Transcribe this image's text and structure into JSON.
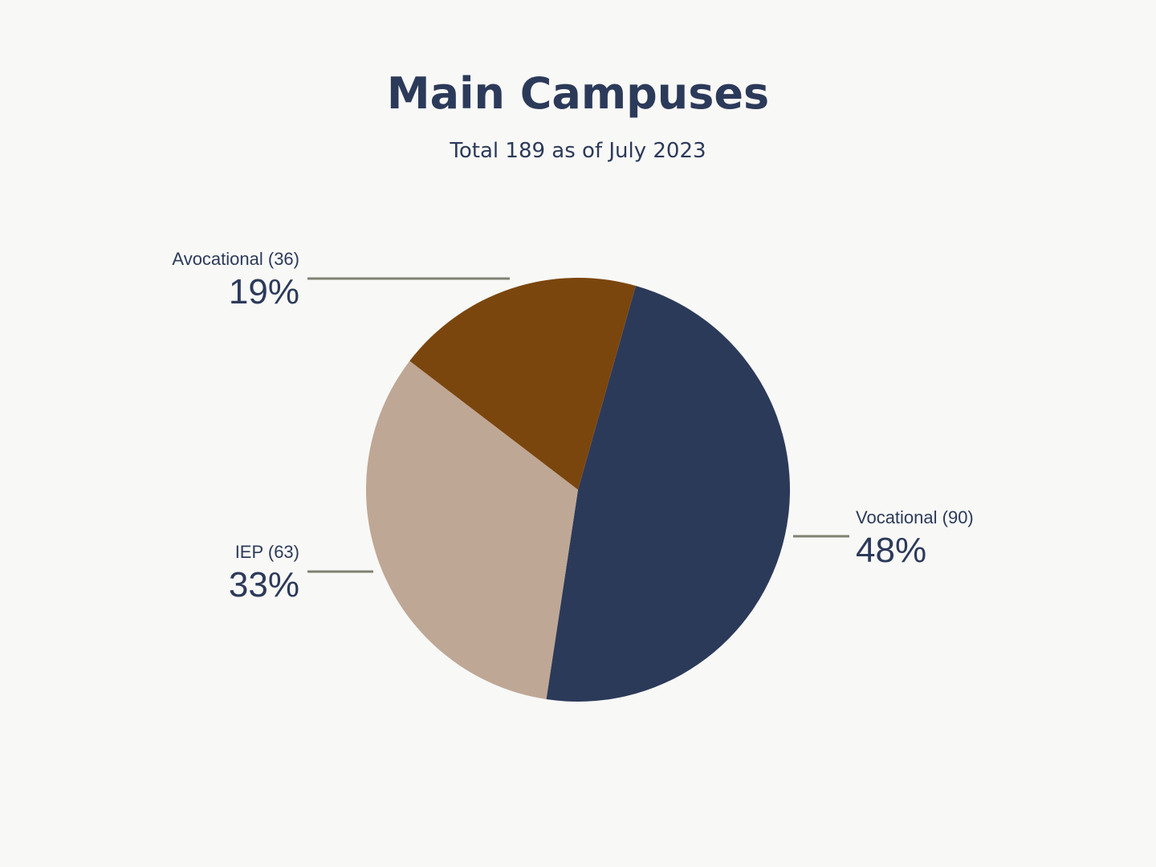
{
  "chart_data": {
    "type": "pie",
    "title": "Main Campuses",
    "subtitle": "Total 189 as of July 2023",
    "categories": [
      "Vocational (90)",
      "IEP (63)",
      "Avocational (36)"
    ],
    "values": [
      48,
      33,
      19
    ],
    "value_labels": [
      "48%",
      "33%",
      "19%"
    ],
    "colors": [
      "#2c3a5a",
      "#bfa795",
      "#7b460d"
    ]
  }
}
